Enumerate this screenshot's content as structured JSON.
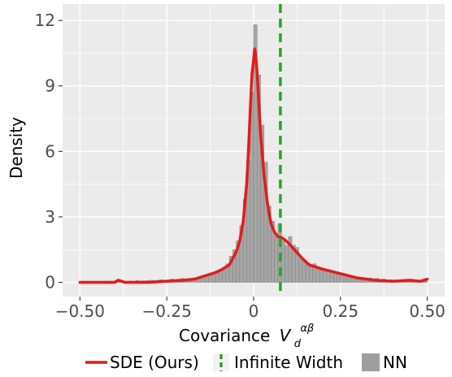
{
  "chart_data": {
    "type": "histogram",
    "xlabel": "Covariance",
    "xlabel_math": {
      "base": "V",
      "sup": "αβ",
      "sub": "d"
    },
    "ylabel": "Density",
    "xlim": [
      -0.5,
      0.5
    ],
    "ylim": [
      0,
      12
    ],
    "x_ticks": [
      -0.5,
      -0.25,
      0,
      0.25,
      0.5
    ],
    "x_tick_labels": [
      "−0.50",
      "−0.25",
      "0",
      "0.25",
      "0.50"
    ],
    "y_ticks": [
      0,
      3,
      6,
      9,
      12
    ],
    "y_tick_labels": [
      "0",
      "3",
      "6",
      "9",
      "12"
    ],
    "grid": true,
    "legend_position": "bottom",
    "colors": {
      "panel": "#ebebeb",
      "grid": "#ffffff",
      "sde": "#e41a1c",
      "infinite": "#2ca02c",
      "nn_fill": "#9e9e9e",
      "nn_edge": "#808080"
    },
    "series": [
      {
        "name": "SDE (Ours)",
        "type": "line",
        "x": [
          -0.5,
          -0.45,
          -0.4,
          -0.39,
          -0.37,
          -0.3,
          -0.25,
          -0.2,
          -0.17,
          -0.15,
          -0.13,
          -0.11,
          -0.09,
          -0.07,
          -0.05,
          -0.04,
          -0.03,
          -0.02,
          -0.015,
          -0.01,
          -0.005,
          0,
          0.003,
          0.006,
          0.01,
          0.015,
          0.02,
          0.03,
          0.04,
          0.05,
          0.06,
          0.07,
          0.08,
          0.09,
          0.1,
          0.12,
          0.14,
          0.16,
          0.18,
          0.2,
          0.25,
          0.3,
          0.35,
          0.4,
          0.45,
          0.48,
          0.5
        ],
        "y": [
          0.0,
          0.0,
          0.0,
          0.1,
          0.0,
          0.0,
          0.05,
          0.1,
          0.15,
          0.25,
          0.35,
          0.45,
          0.6,
          0.8,
          1.4,
          1.9,
          2.8,
          4.5,
          6.0,
          7.8,
          9.5,
          10.2,
          10.7,
          10.4,
          9.6,
          8.2,
          6.8,
          4.9,
          3.6,
          2.7,
          2.3,
          2.1,
          2.05,
          1.95,
          1.8,
          1.45,
          1.1,
          0.8,
          0.7,
          0.6,
          0.4,
          0.2,
          0.1,
          0.05,
          0.1,
          0.05,
          0.15
        ]
      },
      {
        "name": "Infinite Width",
        "type": "vline",
        "x": 0.077
      },
      {
        "name": "NN",
        "type": "histogram",
        "bin_width": 0.01,
        "bin_starts": [
          -0.5,
          -0.49,
          -0.48,
          -0.47,
          -0.46,
          -0.45,
          -0.44,
          -0.43,
          -0.42,
          -0.41,
          -0.4,
          -0.39,
          -0.38,
          -0.37,
          -0.36,
          -0.35,
          -0.34,
          -0.33,
          -0.32,
          -0.31,
          -0.3,
          -0.29,
          -0.28,
          -0.27,
          -0.26,
          -0.25,
          -0.24,
          -0.23,
          -0.22,
          -0.21,
          -0.2,
          -0.19,
          -0.18,
          -0.17,
          -0.16,
          -0.15,
          -0.14,
          -0.13,
          -0.12,
          -0.11,
          -0.1,
          -0.09,
          -0.08,
          -0.07,
          -0.06,
          -0.05,
          -0.04,
          -0.03,
          -0.02,
          -0.01,
          0.0,
          0.01,
          0.02,
          0.03,
          0.04,
          0.05,
          0.06,
          0.07,
          0.08,
          0.09,
          0.1,
          0.11,
          0.12,
          0.13,
          0.14,
          0.15,
          0.16,
          0.17,
          0.18,
          0.19,
          0.2,
          0.21,
          0.22,
          0.23,
          0.24,
          0.25,
          0.26,
          0.27,
          0.28,
          0.29,
          0.3,
          0.31,
          0.32,
          0.33,
          0.34,
          0.35,
          0.36,
          0.37,
          0.38,
          0.39,
          0.4,
          0.41,
          0.42,
          0.43,
          0.44,
          0.45,
          0.46,
          0.47,
          0.48,
          0.49
        ],
        "values": [
          0.02,
          0.03,
          0.05,
          0.02,
          0.04,
          0.03,
          0.05,
          0.02,
          0.06,
          0.03,
          0.05,
          0.1,
          0.05,
          0.04,
          0.06,
          0.05,
          0.08,
          0.06,
          0.07,
          0.08,
          0.1,
          0.08,
          0.1,
          0.12,
          0.1,
          0.12,
          0.15,
          0.13,
          0.15,
          0.18,
          0.15,
          0.18,
          0.2,
          0.18,
          0.22,
          0.28,
          0.3,
          0.38,
          0.45,
          0.5,
          0.6,
          0.7,
          0.85,
          1.2,
          1.5,
          1.9,
          2.6,
          3.8,
          5.6,
          8.7,
          11.8,
          9.5,
          7.2,
          5.5,
          3.5,
          2.8,
          2.1,
          2.7,
          1.9,
          1.7,
          2.1,
          1.7,
          1.6,
          1.1,
          1.0,
          0.9,
          0.8,
          0.85,
          0.7,
          0.6,
          0.55,
          0.5,
          0.45,
          0.42,
          0.4,
          0.38,
          0.35,
          0.3,
          0.28,
          0.25,
          0.2,
          0.2,
          0.18,
          0.2,
          0.15,
          0.18,
          0.12,
          0.15,
          0.1,
          0.12,
          0.1,
          0.1,
          0.12,
          0.08,
          0.1,
          0.08,
          0.06,
          0.1,
          0.05,
          0.08
        ]
      }
    ]
  }
}
